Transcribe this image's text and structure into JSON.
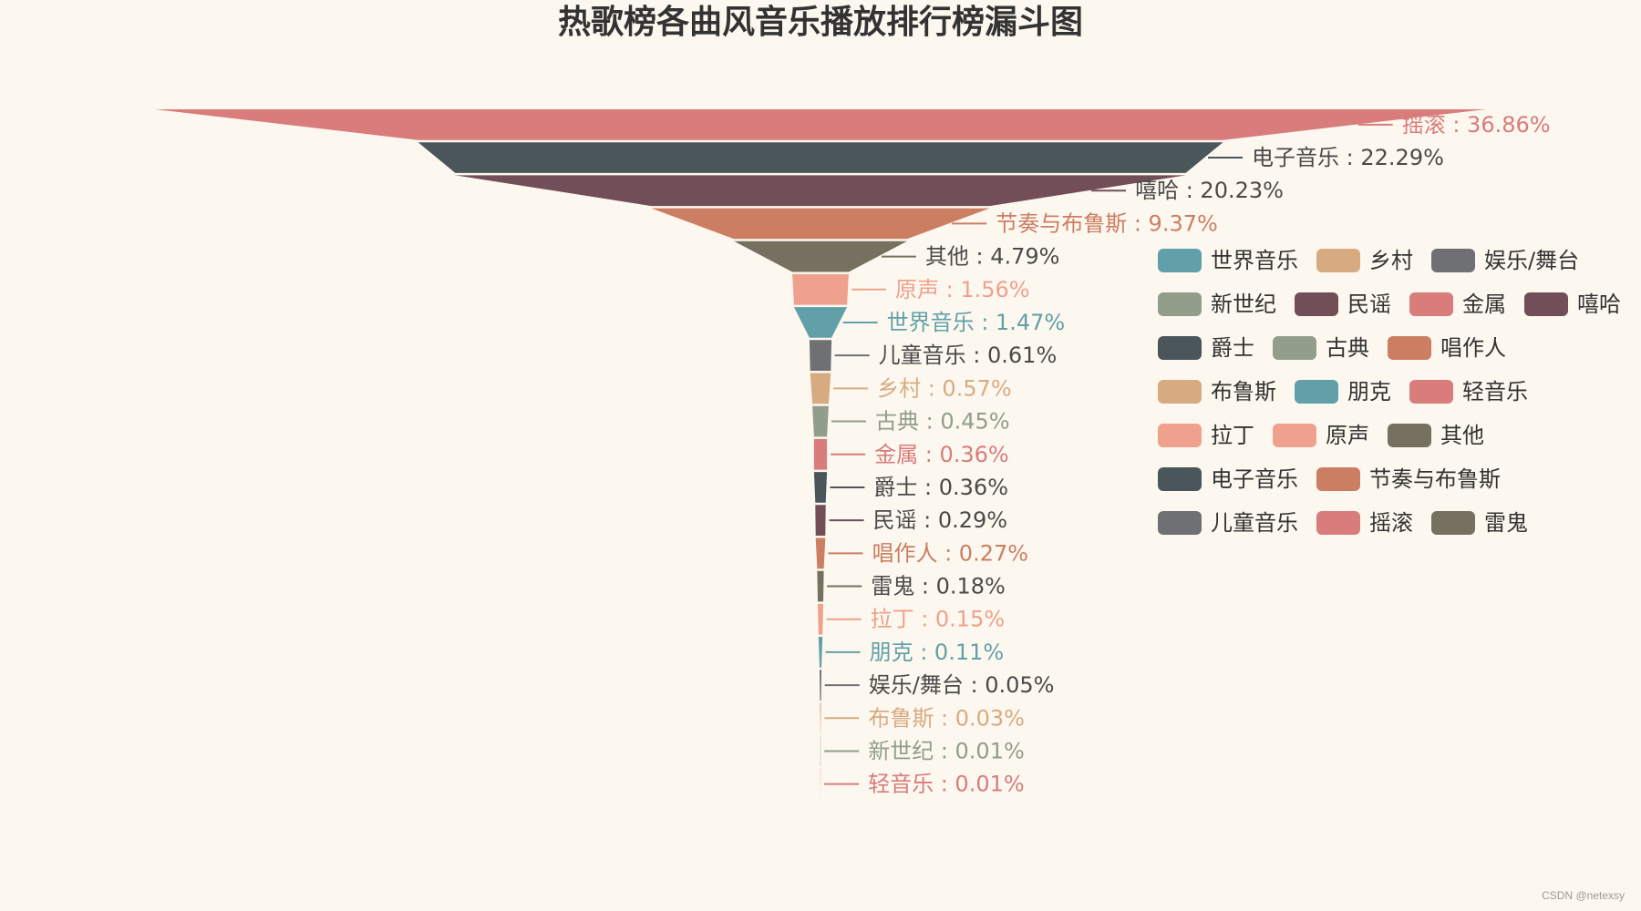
{
  "chart_data": {
    "type": "funnel",
    "title": "热歌榜各曲风音乐播放排行榜漏斗图",
    "items": [
      {
        "name": "摇滚",
        "value": 36.86,
        "color": "#d87c7c"
      },
      {
        "name": "电子音乐",
        "value": 22.29,
        "color": "#4b565b"
      },
      {
        "name": "嘻哈",
        "value": 20.23,
        "color": "#724e58"
      },
      {
        "name": "节奏与布鲁斯",
        "value": 9.37,
        "color": "#cc7e63"
      },
      {
        "name": "其他",
        "value": 4.79,
        "color": "#757060"
      },
      {
        "name": "原声",
        "value": 1.56,
        "color": "#efa18d"
      },
      {
        "name": "世界音乐",
        "value": 1.47,
        "color": "#61a0a8"
      },
      {
        "name": "儿童音乐",
        "value": 0.61,
        "color": "#6e7074"
      },
      {
        "name": "乡村",
        "value": 0.57,
        "color": "#d7ab82"
      },
      {
        "name": "古典",
        "value": 0.45,
        "color": "#919e8b"
      },
      {
        "name": "金属",
        "value": 0.36,
        "color": "#d87c7c"
      },
      {
        "name": "爵士",
        "value": 0.36,
        "color": "#4b565b"
      },
      {
        "name": "民谣",
        "value": 0.29,
        "color": "#724e58"
      },
      {
        "name": "唱作人",
        "value": 0.27,
        "color": "#cc7e63"
      },
      {
        "name": "雷鬼",
        "value": 0.18,
        "color": "#757060"
      },
      {
        "name": "拉丁",
        "value": 0.15,
        "color": "#efa18d"
      },
      {
        "name": "朋克",
        "value": 0.11,
        "color": "#61a0a8"
      },
      {
        "name": "娱乐/舞台",
        "value": 0.05,
        "color": "#6e7074"
      },
      {
        "name": "布鲁斯",
        "value": 0.03,
        "color": "#d7ab82"
      },
      {
        "name": "新世纪",
        "value": 0.01,
        "color": "#919e8b"
      },
      {
        "name": "轻音乐",
        "value": 0.01,
        "color": "#d87c7c"
      }
    ],
    "label_format": "{name} : {value}%",
    "legend_placement": "right",
    "legend": [
      [
        "世界音乐",
        "乡村",
        "娱乐/舞台"
      ],
      [
        "新世纪",
        "民谣",
        "金属",
        "嘻哈"
      ],
      [
        "爵士",
        "古典",
        "唱作人"
      ],
      [
        "布鲁斯",
        "朋克",
        "轻音乐"
      ],
      [
        "拉丁",
        "原声",
        "其他"
      ],
      [
        "电子音乐",
        "节奏与布鲁斯"
      ],
      [
        "儿童音乐",
        "摇滚",
        "雷鬼"
      ]
    ]
  },
  "watermark": "CSDN @netexsy"
}
